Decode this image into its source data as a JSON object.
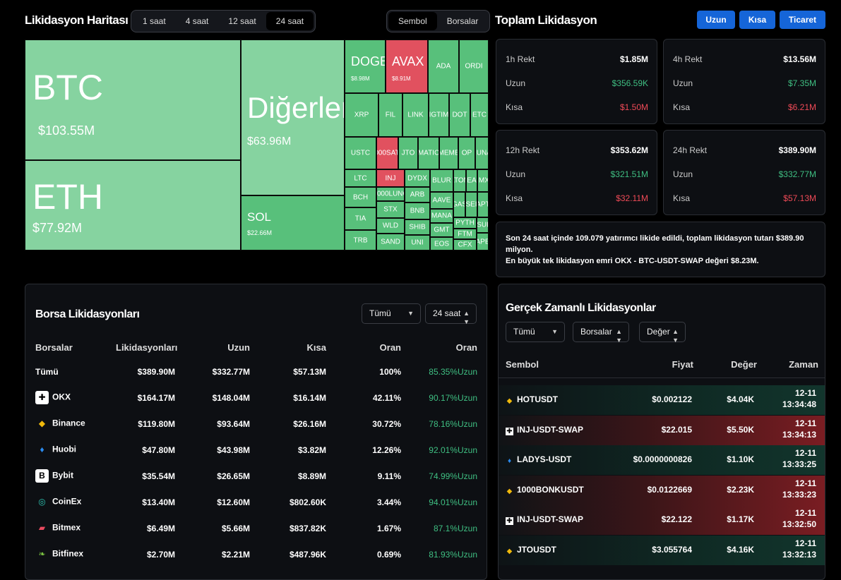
{
  "heatmap": {
    "title": "Likidasyon Haritası",
    "timeframes": [
      "1 saat",
      "4 saat",
      "12 saat",
      "24 saat"
    ],
    "active_timeframe": "24 saat",
    "view_modes": [
      "Sembol",
      "Borsalar"
    ],
    "active_view": "Sembol",
    "tiles": [
      {
        "sym": "BTC",
        "val": "$103.55M",
        "color": "lg"
      },
      {
        "sym": "Diğerleri",
        "val": "$63.96M",
        "color": "lg"
      },
      {
        "sym": "ETH",
        "val": "$77.92M",
        "color": "lg"
      },
      {
        "sym": "SOL",
        "val": "$22.66M",
        "color": "g"
      },
      {
        "sym": "DOGE",
        "val": "$8.98M",
        "color": "g"
      },
      {
        "sym": "AVAX",
        "val": "$8.91M",
        "color": "r"
      },
      {
        "sym": "ADA",
        "color": "g"
      },
      {
        "sym": "ORDI",
        "color": "g"
      },
      {
        "sym": "XRP",
        "color": "g"
      },
      {
        "sym": "FIL",
        "color": "g"
      },
      {
        "sym": "LINK",
        "color": "g"
      },
      {
        "sym": "BIGTIME",
        "color": "g"
      },
      {
        "sym": "DOT",
        "color": "g"
      },
      {
        "sym": "ETC",
        "color": "g"
      },
      {
        "sym": "USTC",
        "color": "g"
      },
      {
        "sym": "1000SATS",
        "color": "r"
      },
      {
        "sym": "JTO",
        "color": "g"
      },
      {
        "sym": "MATIC",
        "color": "g"
      },
      {
        "sym": "MEME",
        "color": "g"
      },
      {
        "sym": "OP",
        "color": "g"
      },
      {
        "sym": "LUNA",
        "color": "g"
      },
      {
        "sym": "LTC",
        "color": "g"
      },
      {
        "sym": "INJ",
        "color": "r"
      },
      {
        "sym": "DYDX",
        "color": "g"
      },
      {
        "sym": "BLUR",
        "color": "g"
      },
      {
        "sym": "ATOM",
        "color": "g"
      },
      {
        "sym": "NEAR",
        "color": "g"
      },
      {
        "sym": "IMX",
        "color": "g"
      },
      {
        "sym": "BCH",
        "color": "g"
      },
      {
        "sym": "1000LUNC",
        "color": "g"
      },
      {
        "sym": "ARB",
        "color": "g"
      },
      {
        "sym": "AAVE",
        "color": "g"
      },
      {
        "sym": "GAS",
        "color": "g"
      },
      {
        "sym": "SEI",
        "color": "g"
      },
      {
        "sym": "APT",
        "color": "g"
      },
      {
        "sym": "TIA",
        "color": "g"
      },
      {
        "sym": "STX",
        "color": "g"
      },
      {
        "sym": "BNB",
        "color": "g"
      },
      {
        "sym": "MANA",
        "color": "g"
      },
      {
        "sym": "WLD",
        "color": "g"
      },
      {
        "sym": "SHIB",
        "color": "g"
      },
      {
        "sym": "GMT",
        "color": "g"
      },
      {
        "sym": "PYTH",
        "color": "g"
      },
      {
        "sym": "SUI",
        "color": "g"
      },
      {
        "sym": "TRB",
        "color": "g"
      },
      {
        "sym": "SAND",
        "color": "g"
      },
      {
        "sym": "UNI",
        "color": "g"
      },
      {
        "sym": "EOS",
        "color": "g"
      },
      {
        "sym": "FTM",
        "color": "g"
      },
      {
        "sym": "CFX",
        "color": "g"
      },
      {
        "sym": "APE",
        "color": "g"
      }
    ]
  },
  "total": {
    "title": "Toplam Likidasyon",
    "buttons": {
      "long": "Uzun",
      "short": "Kısa",
      "trade": "Ticaret"
    },
    "long_label": "Uzun",
    "short_label": "Kısa",
    "cards": [
      {
        "label": "1h Rekt",
        "total": "$1.85M",
        "long": "$356.59K",
        "short": "$1.50M"
      },
      {
        "label": "4h Rekt",
        "total": "$13.56M",
        "long": "$7.35M",
        "short": "$6.21M"
      },
      {
        "label": "12h Rekt",
        "total": "$353.62M",
        "long": "$321.51M",
        "short": "$32.11M"
      },
      {
        "label": "24h Rekt",
        "total": "$389.90M",
        "long": "$332.77M",
        "short": "$57.13M"
      }
    ],
    "summary_line1": "Son 24 saat içinde 109.079 yatırımcı likide edildi, toplam likidasyon tutarı $389.90 milyon.",
    "summary_line2": "En büyük tek likidasyon emri OKX - BTC-USDT-SWAP değeri $8.23M."
  },
  "exchange": {
    "title": "Borsa Likidasyonları",
    "filter": "Tümü",
    "period": "24 saat",
    "columns": [
      "Borsalar",
      "Likidasyonları",
      "Uzun",
      "Kısa",
      "Oran",
      "Oran"
    ],
    "rows": [
      {
        "name": "Tümü",
        "total": "$389.90M",
        "long": "$332.77M",
        "short": "$57.13M",
        "ratio": "100%",
        "long_ratio": "85.35%Uzun",
        "icon": "none"
      },
      {
        "name": "OKX",
        "total": "$164.17M",
        "long": "$148.04M",
        "short": "$16.14M",
        "ratio": "42.11%",
        "long_ratio": "90.17%Uzun",
        "icon": "okx-icon"
      },
      {
        "name": "Binance",
        "total": "$119.80M",
        "long": "$93.64M",
        "short": "$26.16M",
        "ratio": "30.72%",
        "long_ratio": "78.16%Uzun",
        "icon": "binance-icon"
      },
      {
        "name": "Huobi",
        "total": "$47.80M",
        "long": "$43.98M",
        "short": "$3.82M",
        "ratio": "12.26%",
        "long_ratio": "92.01%Uzun",
        "icon": "huobi-icon"
      },
      {
        "name": "Bybit",
        "total": "$35.54M",
        "long": "$26.65M",
        "short": "$8.89M",
        "ratio": "9.11%",
        "long_ratio": "74.99%Uzun",
        "icon": "bybit-icon"
      },
      {
        "name": "CoinEx",
        "total": "$13.40M",
        "long": "$12.60M",
        "short": "$802.60K",
        "ratio": "3.44%",
        "long_ratio": "94.01%Uzun",
        "icon": "coinex-icon"
      },
      {
        "name": "Bitmex",
        "total": "$6.49M",
        "long": "$5.66M",
        "short": "$837.82K",
        "ratio": "1.67%",
        "long_ratio": "87.1%Uzun",
        "icon": "bitmex-icon"
      },
      {
        "name": "Bitfinex",
        "total": "$2.70M",
        "long": "$2.21M",
        "short": "$487.96K",
        "ratio": "0.69%",
        "long_ratio": "81.93%Uzun",
        "icon": "bitfinex-icon"
      }
    ]
  },
  "realtime": {
    "title": "Gerçek Zamanlı Likidasyonlar",
    "filters": [
      "Tümü",
      "Borsalar",
      "Değer"
    ],
    "columns": [
      "Sembol",
      "Fiyat",
      "Değer",
      "Zaman"
    ],
    "rows": [
      {
        "sym": "HOTUSDT",
        "price": "$0.002122",
        "value": "$4.04K",
        "date": "12-11",
        "time": "13:34:48",
        "side": "long",
        "icon": "binance-icon"
      },
      {
        "sym": "INJ-USDT-SWAP",
        "price": "$22.015",
        "value": "$5.50K",
        "date": "12-11",
        "time": "13:34:13",
        "side": "short",
        "icon": "okx-icon"
      },
      {
        "sym": "LADYS-USDT",
        "price": "$0.0000000826",
        "value": "$1.10K",
        "date": "12-11",
        "time": "13:33:25",
        "side": "long",
        "icon": "huobi-icon"
      },
      {
        "sym": "1000BONKUSDT",
        "price": "$0.0122669",
        "value": "$2.23K",
        "date": "12-11",
        "time": "13:33:23",
        "side": "short",
        "icon": "binance-icon"
      },
      {
        "sym": "INJ-USDT-SWAP",
        "price": "$22.122",
        "value": "$1.17K",
        "date": "12-11",
        "time": "13:32:50",
        "side": "short",
        "icon": "okx-icon"
      },
      {
        "sym": "JTOUSDT",
        "price": "$3.055764",
        "value": "$4.16K",
        "date": "12-11",
        "time": "13:32:13",
        "side": "long",
        "icon": "binance-icon"
      }
    ]
  }
}
